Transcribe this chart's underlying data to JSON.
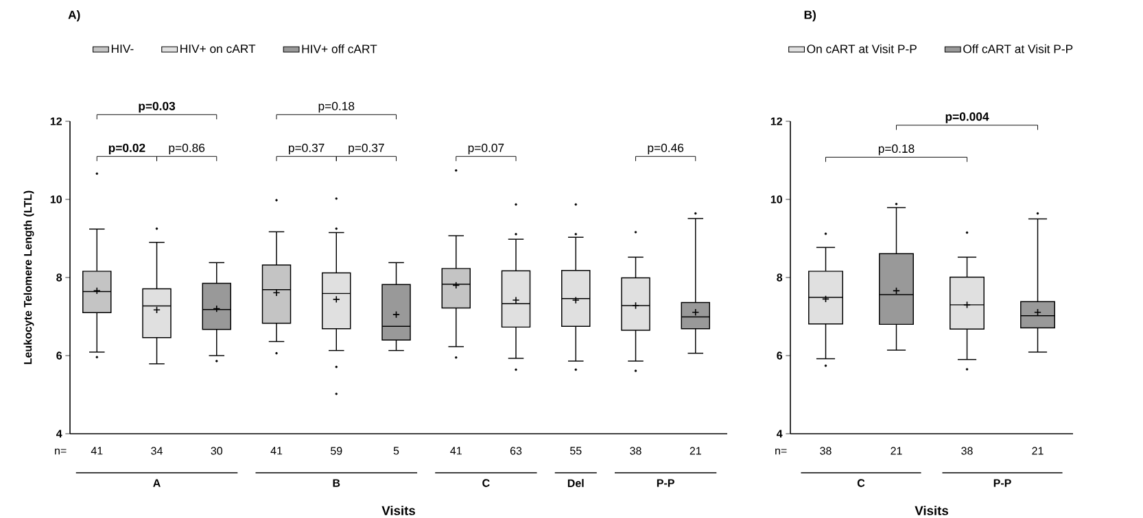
{
  "chart_data": [
    {
      "type": "box",
      "title": "A)",
      "xlabel": "Visits",
      "ylabel": "Leukocyte Telomere Length (LTL)",
      "categories": [
        "41",
        "34",
        "30",
        "41",
        "59",
        "5",
        "41",
        "63",
        "55",
        "38",
        "21"
      ],
      "ylim": [
        4,
        12
      ],
      "yticks": [
        4,
        6,
        8,
        10,
        12
      ],
      "legend": "top left",
      "series": [
        {
          "name": "HIV-",
          "color": "#c4c4c4",
          "boxes": [
            {
              "low": 6.09,
              "q1": 7.1,
              "median": 7.64,
              "q3": 8.16,
              "high": 9.24,
              "mean": 7.66,
              "outliers": [
                10.66,
                5.96
              ]
            },
            null,
            null,
            {
              "low": 6.36,
              "q1": 6.83,
              "median": 7.69,
              "q3": 8.32,
              "high": 9.17,
              "mean": 7.61,
              "outliers": [
                9.98,
                6.06
              ]
            },
            null,
            null,
            {
              "low": 6.23,
              "q1": 7.22,
              "median": 7.83,
              "q3": 8.23,
              "high": 9.07,
              "mean": 7.8,
              "outliers": [
                10.74,
                5.95
              ]
            },
            null,
            null,
            null,
            null
          ]
        },
        {
          "name": "HIV+ on cART",
          "color": "#e0e0e0",
          "boxes": [
            null,
            {
              "low": 5.79,
              "q1": 6.46,
              "median": 7.27,
              "q3": 7.71,
              "high": 8.9,
              "mean": 7.17,
              "outliers": [
                9.25
              ]
            },
            null,
            null,
            {
              "low": 6.13,
              "q1": 6.69,
              "median": 7.59,
              "q3": 8.12,
              "high": 9.15,
              "mean": 7.44,
              "outliers": [
                10.02,
                9.25,
                5.71,
                5.02
              ]
            },
            null,
            null,
            {
              "low": 5.93,
              "q1": 6.73,
              "median": 7.33,
              "q3": 8.17,
              "high": 8.98,
              "mean": 7.42,
              "outliers": [
                9.87,
                9.11,
                5.64
              ]
            },
            {
              "low": 5.86,
              "q1": 6.75,
              "median": 7.46,
              "q3": 8.18,
              "high": 9.03,
              "mean": 7.42,
              "outliers": [
                9.87,
                9.11,
                5.64
              ]
            },
            {
              "low": 5.86,
              "q1": 6.65,
              "median": 7.28,
              "q3": 7.99,
              "high": 8.52,
              "mean": 7.28,
              "outliers": [
                9.16,
                5.61
              ]
            },
            null
          ]
        },
        {
          "name": "HIV+ off cART",
          "color": "#999999",
          "boxes": [
            null,
            null,
            {
              "low": 6.0,
              "q1": 6.67,
              "median": 7.18,
              "q3": 7.85,
              "high": 8.38,
              "mean": 7.2,
              "outliers": [
                5.86
              ]
            },
            null,
            null,
            {
              "low": 6.13,
              "q1": 6.4,
              "median": 6.75,
              "q3": 7.82,
              "high": 8.38,
              "mean": 7.05
            },
            null,
            null,
            null,
            null,
            {
              "low": 6.06,
              "q1": 6.69,
              "median": 6.99,
              "q3": 7.36,
              "high": 9.51,
              "mean": 7.11,
              "outliers": [
                9.64
              ]
            }
          ]
        }
      ],
      "annotations": [
        "n=",
        "A",
        "B",
        "C",
        "Del",
        "P-P",
        "**p=0.03**",
        "**p=0.02**",
        "p=0.86",
        "p=0.18",
        "p=0.37",
        "p=0.37",
        "p=0.07",
        "p=0.46"
      ]
    },
    {
      "type": "box",
      "title": "B)",
      "xlabel": "Visits",
      "categories": [
        "38",
        "21",
        "38",
        "21"
      ],
      "ylim": [
        4,
        12
      ],
      "yticks": [
        4,
        6,
        8,
        10,
        12
      ],
      "legend": "top",
      "series": [
        {
          "name": "On cART at Visit P-P",
          "color": "#e0e0e0",
          "boxes": [
            {
              "low": 5.92,
              "q1": 6.81,
              "median": 7.49,
              "q3": 8.16,
              "high": 8.77,
              "mean": 7.45,
              "outliers": [
                9.12,
                5.74
              ]
            },
            null,
            {
              "low": 5.9,
              "q1": 6.68,
              "median": 7.3,
              "q3": 8.01,
              "high": 8.52,
              "mean": 7.3,
              "outliers": [
                9.15,
                5.65
              ]
            },
            null
          ]
        },
        {
          "name": "Off cART at Visit P-P",
          "color": "#999999",
          "boxes": [
            null,
            {
              "low": 6.14,
              "q1": 6.8,
              "median": 7.56,
              "q3": 8.61,
              "high": 9.79,
              "mean": 7.66,
              "outliers": [
                9.88
              ]
            },
            null,
            {
              "low": 6.09,
              "q1": 6.71,
              "median": 7.02,
              "q3": 7.38,
              "high": 9.5,
              "mean": 7.11,
              "outliers": [
                9.64
              ]
            }
          ]
        }
      ],
      "annotations": [
        "n=",
        "C",
        "P-P",
        "p=0.18",
        "**p=0.004**"
      ]
    }
  ]
}
